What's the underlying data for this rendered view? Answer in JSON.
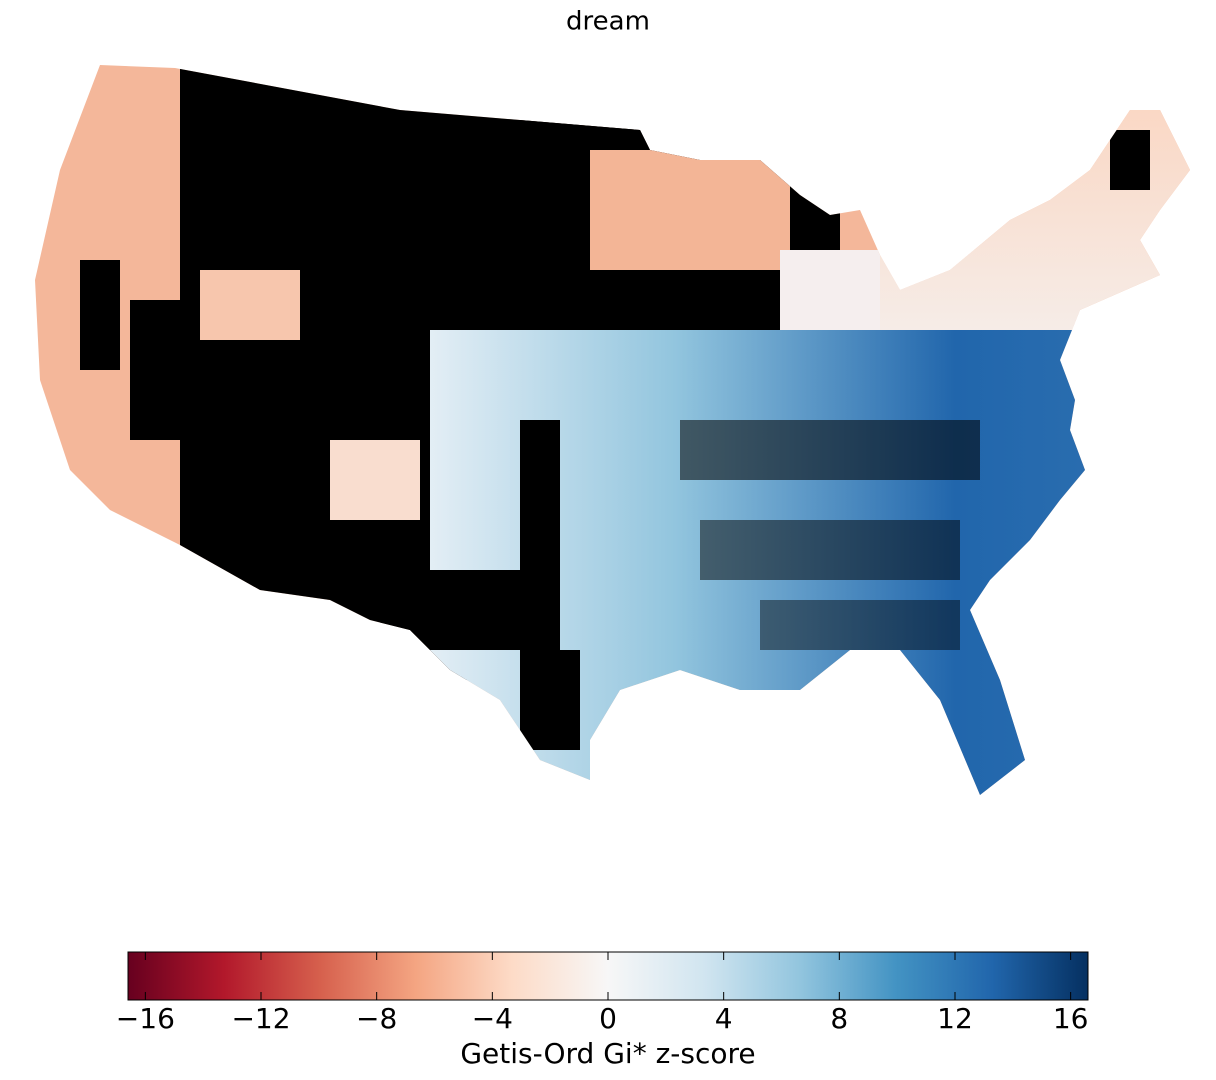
{
  "chart_data": {
    "type": "choropleth",
    "title": "dream",
    "colorbar": {
      "label": "Getis-Ord Gi* z-score",
      "lim": [
        -16.6,
        16.6
      ],
      "ticks": [
        {
          "value": -16,
          "label": "−16"
        },
        {
          "value": -12,
          "label": "−12"
        },
        {
          "value": -8,
          "label": "−8"
        },
        {
          "value": -4,
          "label": "−4"
        },
        0,
        4,
        8,
        12,
        16
      ],
      "colormap": [
        "#67001f",
        "#b2182b",
        "#d6604d",
        "#f4a582",
        "#fddbc7",
        "#f7f7f7",
        "#d1e5f0",
        "#92c5de",
        "#4393c3",
        "#2166ac",
        "#053061"
      ]
    }
  }
}
